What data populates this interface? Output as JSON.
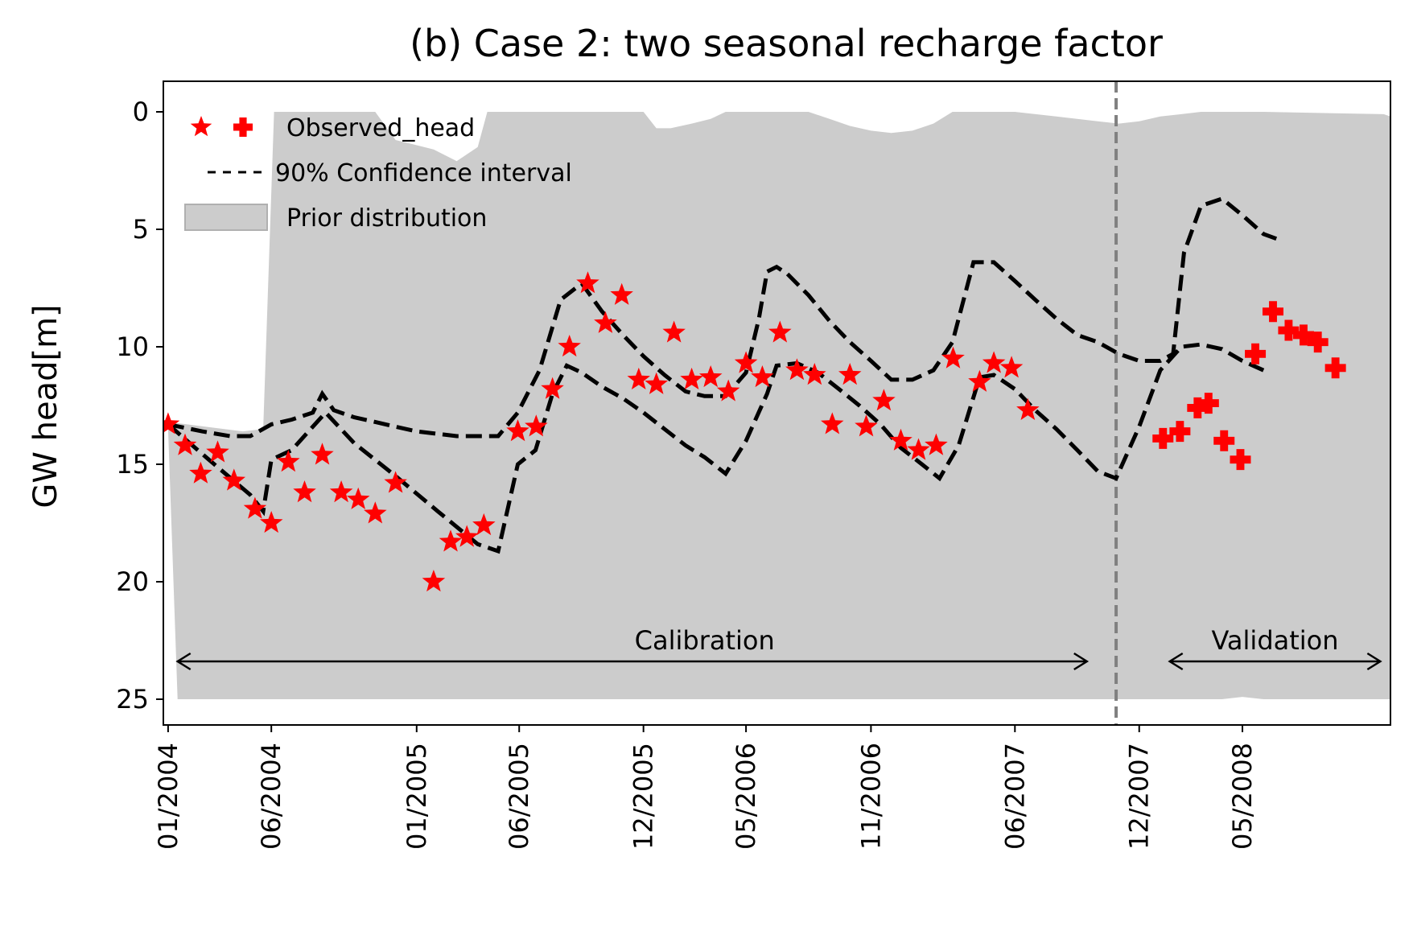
{
  "chart_data": {
    "type": "line",
    "title": "(b) Case 2: two seasonal recharge factor",
    "xlabel": "",
    "ylabel": "GW head[m]",
    "y_inverted": true,
    "ylim": [
      25,
      0
    ],
    "xlim": [
      "2003-12-25",
      "2008-12-05"
    ],
    "x_tick_labels": [
      "01/2004",
      "06/2004",
      "01/2005",
      "06/2005",
      "12/2005",
      "05/2006",
      "11/2006",
      "06/2007",
      "12/2007",
      "05/2008"
    ],
    "x_tick_dates": [
      "2004-01-01",
      "2004-06-01",
      "2005-01-01",
      "2005-06-01",
      "2005-12-01",
      "2006-05-01",
      "2006-11-01",
      "2007-06-01",
      "2007-12-01",
      "2008-05-01"
    ],
    "y_ticks": [
      0,
      5,
      10,
      15,
      20,
      25
    ],
    "split_date": "2007-10-28",
    "legend": {
      "position": "upper-left",
      "entries": [
        "Observed_head",
        "90% Confidence interval",
        "Prior distribution"
      ]
    },
    "annotations": [
      {
        "text": "Calibration",
        "from": "2004-01-15",
        "to": "2007-09-15"
      },
      {
        "text": "Validation",
        "from": "2008-01-15",
        "to": "2008-11-20"
      }
    ],
    "colors": {
      "observed": "#ff0000",
      "interval": "#000000",
      "prior": "#cccccc",
      "split_line": "#808080"
    },
    "series": [
      {
        "name": "Observed_head",
        "marker": "star",
        "points": [
          [
            "2004-01-01",
            13.3
          ],
          [
            "2004-01-26",
            14.2
          ],
          [
            "2004-02-18",
            15.4
          ],
          [
            "2004-03-14",
            14.5
          ],
          [
            "2004-04-07",
            15.7
          ],
          [
            "2004-05-08",
            16.9
          ],
          [
            "2004-06-01",
            17.5
          ],
          [
            "2004-06-26",
            14.9
          ],
          [
            "2004-07-20",
            16.2
          ],
          [
            "2004-08-15",
            14.6
          ],
          [
            "2004-09-12",
            16.2
          ],
          [
            "2004-10-07",
            16.5
          ],
          [
            "2004-11-01",
            17.1
          ],
          [
            "2004-12-01",
            15.8
          ],
          [
            "2005-01-26",
            20.0
          ],
          [
            "2005-02-20",
            18.3
          ],
          [
            "2005-03-16",
            18.1
          ],
          [
            "2005-04-10",
            17.6
          ],
          [
            "2005-05-30",
            13.6
          ],
          [
            "2005-06-26",
            13.4
          ],
          [
            "2005-07-20",
            11.8
          ],
          [
            "2005-08-14",
            10.0
          ],
          [
            "2005-09-10",
            7.3
          ],
          [
            "2005-10-06",
            9.0
          ],
          [
            "2005-10-30",
            7.8
          ],
          [
            "2005-11-24",
            11.4
          ],
          [
            "2005-12-20",
            11.6
          ],
          [
            "2006-01-15",
            9.4
          ],
          [
            "2006-02-10",
            11.4
          ],
          [
            "2006-03-10",
            11.3
          ],
          [
            "2006-04-05",
            11.9
          ],
          [
            "2006-05-01",
            10.7
          ],
          [
            "2006-05-25",
            11.3
          ],
          [
            "2006-06-20",
            9.4
          ],
          [
            "2006-07-15",
            11.0
          ],
          [
            "2006-08-10",
            11.2
          ],
          [
            "2006-09-05",
            13.3
          ],
          [
            "2006-10-01",
            11.2
          ],
          [
            "2006-10-25",
            13.4
          ],
          [
            "2006-11-20",
            12.3
          ],
          [
            "2006-12-15",
            14.0
          ],
          [
            "2007-01-10",
            14.4
          ],
          [
            "2007-02-05",
            14.2
          ],
          [
            "2007-03-02",
            10.5
          ],
          [
            "2007-04-10",
            11.5
          ],
          [
            "2007-05-01",
            10.7
          ],
          [
            "2007-05-27",
            10.9
          ],
          [
            "2007-06-20",
            12.7
          ]
        ]
      },
      {
        "name": "Observed_head",
        "marker": "plus",
        "points": [
          [
            "2008-01-05",
            13.9
          ],
          [
            "2008-01-30",
            13.6
          ],
          [
            "2008-02-25",
            12.6
          ],
          [
            "2008-03-12",
            12.4
          ],
          [
            "2008-04-04",
            14.0
          ],
          [
            "2008-04-28",
            14.8
          ],
          [
            "2008-05-20",
            10.3
          ],
          [
            "2008-06-15",
            8.5
          ],
          [
            "2008-07-08",
            9.3
          ],
          [
            "2008-07-30",
            9.5
          ],
          [
            "2008-08-20",
            9.8
          ],
          [
            "2008-09-15",
            10.9
          ]
        ]
      },
      {
        "name": "90% Confidence interval",
        "role": "upper",
        "style": "dashed",
        "points": [
          [
            "2004-01-01",
            13.3
          ],
          [
            "2004-02-20",
            13.6
          ],
          [
            "2004-04-01",
            13.8
          ],
          [
            "2004-05-01",
            13.8
          ],
          [
            "2004-06-01",
            13.3
          ],
          [
            "2004-07-01",
            13.1
          ],
          [
            "2004-08-01",
            12.8
          ],
          [
            "2004-08-15",
            12.0
          ],
          [
            "2004-09-01",
            12.7
          ],
          [
            "2004-10-01",
            13.0
          ],
          [
            "2004-11-01",
            13.2
          ],
          [
            "2004-12-01",
            13.4
          ],
          [
            "2005-01-01",
            13.6
          ],
          [
            "2005-03-01",
            13.8
          ],
          [
            "2005-05-01",
            13.8
          ],
          [
            "2005-05-30",
            12.8
          ],
          [
            "2005-07-01",
            11.0
          ],
          [
            "2005-08-01",
            8.0
          ],
          [
            "2005-09-01",
            7.3
          ],
          [
            "2005-10-01",
            8.5
          ],
          [
            "2005-11-01",
            9.5
          ],
          [
            "2005-12-01",
            10.4
          ],
          [
            "2006-01-01",
            11.2
          ],
          [
            "2006-02-01",
            11.9
          ],
          [
            "2006-03-01",
            12.1
          ],
          [
            "2006-04-01",
            12.1
          ],
          [
            "2006-05-01",
            11.1
          ],
          [
            "2006-05-20",
            8.8
          ],
          [
            "2006-06-01",
            6.8
          ],
          [
            "2006-06-15",
            6.6
          ],
          [
            "2006-07-01",
            6.9
          ],
          [
            "2006-08-01",
            7.8
          ],
          [
            "2006-09-01",
            8.9
          ],
          [
            "2006-10-01",
            9.8
          ],
          [
            "2006-11-01",
            10.6
          ],
          [
            "2006-12-01",
            11.4
          ],
          [
            "2007-01-01",
            11.4
          ],
          [
            "2007-02-01",
            11.0
          ],
          [
            "2007-03-01",
            9.8
          ],
          [
            "2007-04-01",
            6.4
          ],
          [
            "2007-05-01",
            6.4
          ],
          [
            "2007-06-01",
            7.2
          ],
          [
            "2007-07-01",
            8.0
          ],
          [
            "2007-08-01",
            8.8
          ],
          [
            "2007-09-01",
            9.5
          ],
          [
            "2007-10-01",
            9.8
          ],
          [
            "2007-11-01",
            10.3
          ],
          [
            "2007-12-01",
            10.6
          ],
          [
            "2008-01-01",
            10.6
          ],
          [
            "2008-01-20",
            10.3
          ],
          [
            "2008-02-05",
            6.0
          ],
          [
            "2008-03-01",
            4.0
          ],
          [
            "2008-04-01",
            3.7
          ],
          [
            "2008-05-01",
            4.4
          ],
          [
            "2008-06-01",
            5.2
          ],
          [
            "2008-06-20",
            5.4
          ]
        ]
      },
      {
        "name": "90% Confidence interval",
        "role": "lower",
        "style": "dashed",
        "points": [
          [
            "2004-01-01",
            13.3
          ],
          [
            "2004-03-01",
            14.8
          ],
          [
            "2004-05-01",
            16.3
          ],
          [
            "2004-05-20",
            17.0
          ],
          [
            "2004-06-01",
            14.8
          ],
          [
            "2004-07-01",
            14.4
          ],
          [
            "2004-08-01",
            13.4
          ],
          [
            "2004-08-20",
            12.8
          ],
          [
            "2004-10-01",
            14.1
          ],
          [
            "2004-12-01",
            15.5
          ],
          [
            "2005-02-01",
            17.0
          ],
          [
            "2005-04-01",
            18.4
          ],
          [
            "2005-05-01",
            18.7
          ],
          [
            "2005-05-30",
            15.0
          ],
          [
            "2005-06-25",
            14.4
          ],
          [
            "2005-07-20",
            12.0
          ],
          [
            "2005-08-10",
            10.8
          ],
          [
            "2005-09-01",
            11.1
          ],
          [
            "2005-10-01",
            11.7
          ],
          [
            "2005-11-01",
            12.2
          ],
          [
            "2005-12-01",
            12.8
          ],
          [
            "2006-01-01",
            13.5
          ],
          [
            "2006-02-01",
            14.2
          ],
          [
            "2006-03-01",
            14.7
          ],
          [
            "2006-04-01",
            15.4
          ],
          [
            "2006-05-01",
            14.0
          ],
          [
            "2006-06-01",
            12.0
          ],
          [
            "2006-06-15",
            10.8
          ],
          [
            "2006-07-15",
            10.7
          ],
          [
            "2006-08-15",
            11.1
          ],
          [
            "2006-09-15",
            11.8
          ],
          [
            "2006-10-15",
            12.5
          ],
          [
            "2006-11-15",
            13.3
          ],
          [
            "2006-12-15",
            14.3
          ],
          [
            "2007-01-15",
            15.0
          ],
          [
            "2007-02-10",
            15.6
          ],
          [
            "2007-03-10",
            14.2
          ],
          [
            "2007-04-10",
            11.3
          ],
          [
            "2007-05-01",
            11.2
          ],
          [
            "2007-06-01",
            11.8
          ],
          [
            "2007-07-01",
            12.7
          ],
          [
            "2007-08-01",
            13.5
          ],
          [
            "2007-09-01",
            14.4
          ],
          [
            "2007-10-01",
            15.3
          ],
          [
            "2007-10-28",
            15.6
          ],
          [
            "2007-12-01",
            13.4
          ],
          [
            "2008-01-01",
            11.0
          ],
          [
            "2008-02-01",
            10.0
          ],
          [
            "2008-03-01",
            9.9
          ],
          [
            "2008-04-01",
            10.1
          ],
          [
            "2008-05-01",
            10.6
          ],
          [
            "2008-06-01",
            11.0
          ]
        ]
      },
      {
        "name": "Prior distribution",
        "type": "area",
        "upper": [
          [
            "2003-12-25",
            13.2
          ],
          [
            "2004-01-01",
            13.2
          ],
          [
            "2004-04-20",
            13.6
          ],
          [
            "2004-05-20",
            13.5
          ],
          [
            "2004-06-05",
            0.0
          ],
          [
            "2004-11-01",
            0.0
          ],
          [
            "2004-12-01",
            1.2
          ],
          [
            "2005-01-26",
            1.6
          ],
          [
            "2005-03-01",
            2.1
          ],
          [
            "2005-04-01",
            1.5
          ],
          [
            "2005-04-15",
            0.0
          ],
          [
            "2005-12-01",
            0.0
          ],
          [
            "2005-12-20",
            0.7
          ],
          [
            "2006-01-10",
            0.7
          ],
          [
            "2006-02-10",
            0.5
          ],
          [
            "2006-03-10",
            0.3
          ],
          [
            "2006-04-01",
            0.0
          ],
          [
            "2006-08-01",
            0.0
          ],
          [
            "2006-09-01",
            0.3
          ],
          [
            "2006-10-01",
            0.6
          ],
          [
            "2006-11-01",
            0.8
          ],
          [
            "2006-12-01",
            0.9
          ],
          [
            "2007-01-01",
            0.8
          ],
          [
            "2007-02-01",
            0.5
          ],
          [
            "2007-03-01",
            0.0
          ],
          [
            "2007-06-01",
            0.0
          ],
          [
            "2007-08-01",
            0.2
          ],
          [
            "2007-10-01",
            0.4
          ],
          [
            "2007-11-01",
            0.5
          ],
          [
            "2007-12-01",
            0.4
          ],
          [
            "2008-01-01",
            0.2
          ],
          [
            "2008-02-01",
            0.1
          ],
          [
            "2008-03-01",
            0.0
          ],
          [
            "2008-05-01",
            0.0
          ],
          [
            "2008-06-01",
            0.0
          ],
          [
            "2008-11-25",
            0.1
          ],
          [
            "2008-12-05",
            0.2
          ]
        ],
        "lower": [
          [
            "2003-12-25",
            13.2
          ],
          [
            "2004-01-01",
            13.5
          ],
          [
            "2004-01-15",
            25.0
          ],
          [
            "2008-04-01",
            25.0
          ],
          [
            "2008-05-01",
            24.9
          ],
          [
            "2008-06-01",
            25.0
          ],
          [
            "2008-12-05",
            25.0
          ]
        ]
      }
    ]
  }
}
